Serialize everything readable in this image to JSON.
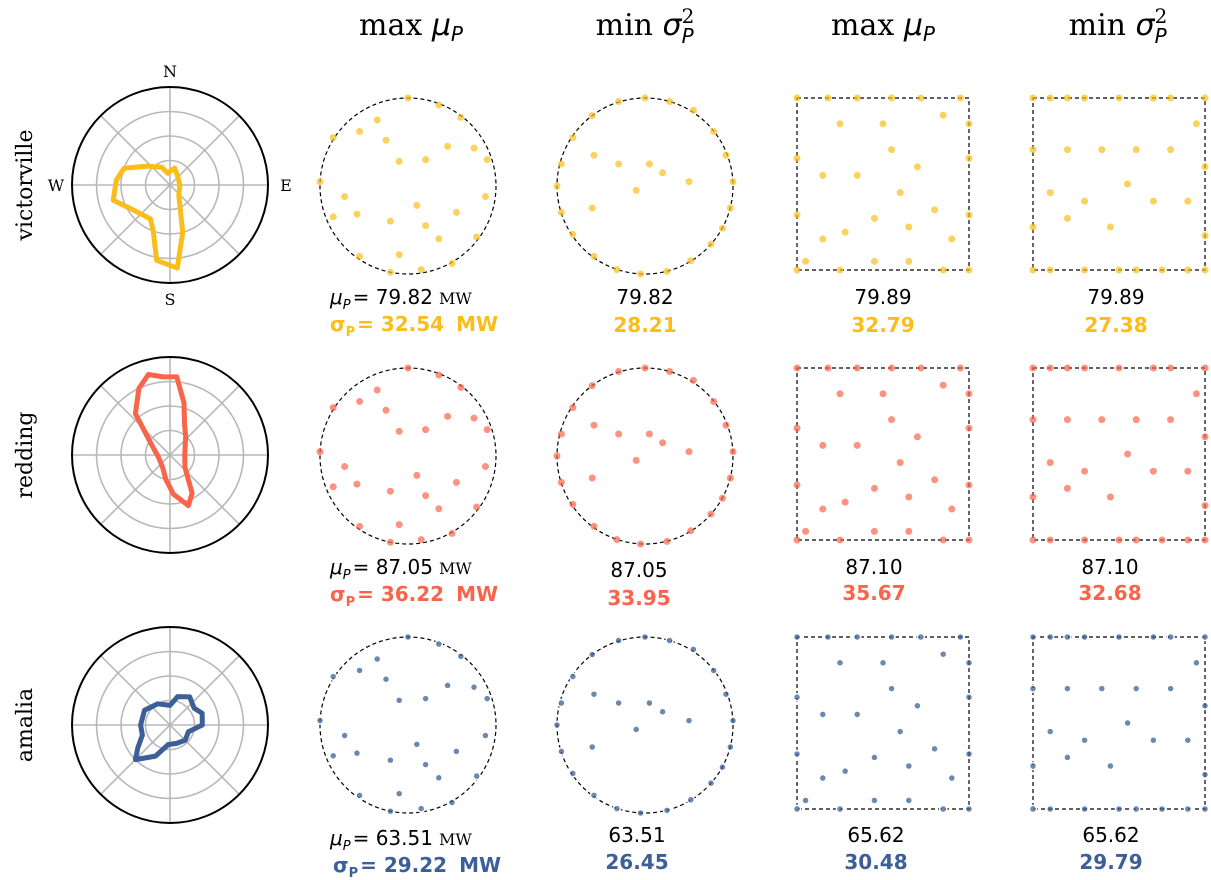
{
  "column_headers": [
    {
      "prefix": "max",
      "symbol": "μ",
      "sub": "P",
      "sup": ""
    },
    {
      "prefix": "min",
      "symbol": "σ",
      "sub": "P",
      "sup": "2"
    },
    {
      "prefix": "max",
      "symbol": "μ",
      "sub": "P",
      "sup": ""
    },
    {
      "prefix": "min",
      "symbol": "σ",
      "sub": "P",
      "sup": "2"
    }
  ],
  "compass_labels": {
    "n": "N",
    "s": "S",
    "e": "E",
    "w": "W"
  },
  "rows": [
    {
      "name": "victorville",
      "color": "#fbbd1a",
      "mu_label": "μ",
      "mu_sub": "P",
      "mu_first": "= 79.82",
      "sigma_label": "σ",
      "sigma_sub": "P",
      "sigma_first": "= 32.54",
      "unit_mu": "MW",
      "unit_sigma": "MW",
      "mu": [
        "79.82",
        "79.82",
        "79.89",
        "79.89"
      ],
      "sigma": [
        "32.54",
        "28.21",
        "32.79",
        "27.38"
      ]
    },
    {
      "name": "redding",
      "color": "#f9654a",
      "mu_label": "μ",
      "mu_sub": "P",
      "mu_first": "= 87.05",
      "sigma_label": "σ",
      "sigma_sub": "P",
      "sigma_first": "= 36.22",
      "unit_mu": "MW",
      "unit_sigma": "MW",
      "mu": [
        "87.05",
        "87.05",
        "87.10",
        "87.10"
      ],
      "sigma": [
        "36.22",
        "33.95",
        "35.67",
        "32.68"
      ]
    },
    {
      "name": "amalia",
      "color": "#3b5f96",
      "mu_label": "μ",
      "mu_sub": "P",
      "mu_first": "= 63.51",
      "sigma_label": "σ",
      "sigma_sub": "P",
      "sigma_first": "= 29.22",
      "unit_mu": "MW",
      "unit_sigma": "MW",
      "mu": [
        "63.51",
        "63.51",
        "65.62",
        "65.62"
      ],
      "sigma": [
        "29.22",
        "26.45",
        "30.48",
        "29.79"
      ]
    }
  ],
  "chart_data": [
    {
      "type": "scatter",
      "title": "",
      "note": "wind rose polar plots (left column) and turbine layouts in circular/square domains; values are approximate, read from the figure"
    }
  ]
}
